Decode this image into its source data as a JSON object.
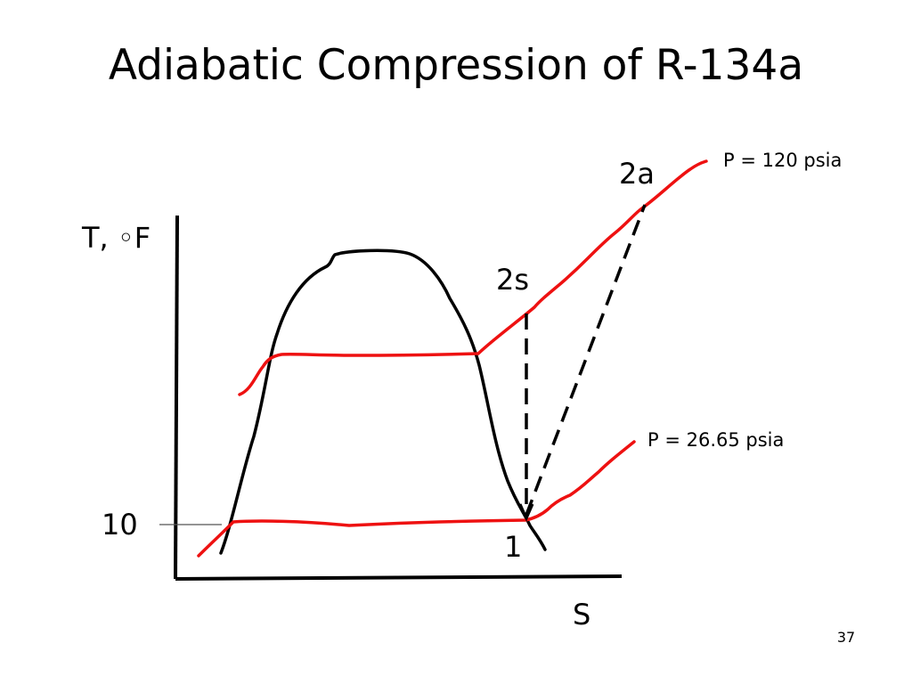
{
  "title": "Adiabatic Compression of R-134a",
  "axes": {
    "y_label": "T, ◦F",
    "x_label": "S",
    "y_tick": "10"
  },
  "state_points": {
    "state_1": "1",
    "state_2s": "2s",
    "state_2a": "2a"
  },
  "isobars": {
    "high_pressure": "P = 120 psia",
    "low_pressure": "P = 26.65 psia"
  },
  "colors": {
    "isobar": "#ee1111",
    "dome": "#000000",
    "axis": "#000000"
  },
  "slide_number": "37"
}
